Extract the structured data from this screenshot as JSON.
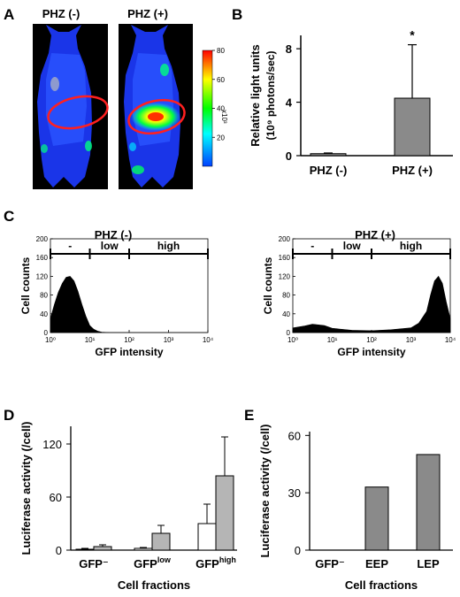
{
  "panels": {
    "A": {
      "letter": "A",
      "left_title": "PHZ (-)",
      "right_title": "PHZ (+)",
      "colorbar": {
        "ticks": [
          "80",
          "60",
          "40",
          "20"
        ],
        "unit": "x10³",
        "colors": [
          "#ff0000",
          "#ffff00",
          "#00ff00",
          "#00ffff",
          "#0040ff"
        ]
      }
    },
    "B": {
      "letter": "B"
    },
    "C": {
      "letter": "C",
      "left": {
        "title": "PHZ (-)",
        "gates": [
          "-",
          "low",
          "high"
        ]
      },
      "right": {
        "title": "PHZ (+)",
        "gates": [
          "-",
          "low",
          "high"
        ]
      }
    },
    "D": {
      "letter": "D"
    },
    "E": {
      "letter": "E"
    }
  },
  "chart_data": [
    {
      "id": "B",
      "type": "bar",
      "categories": [
        "PHZ (-)",
        "PHZ (+)"
      ],
      "values": [
        0.15,
        4.3
      ],
      "errors": [
        0.05,
        4.0
      ],
      "significance": [
        "",
        "*"
      ],
      "ylabel_lines": [
        "Relative light units",
        "(10⁹ photons/sec)"
      ],
      "yticks": [
        0,
        4,
        8
      ],
      "ylim": [
        0,
        9
      ],
      "colors": [
        "#8a8a8a"
      ]
    },
    {
      "id": "C-left",
      "type": "area",
      "xlabel": "GFP intensity",
      "ylabel": "Cell counts",
      "xscale": "log",
      "xlim": [
        1,
        10000
      ],
      "ylim": [
        0,
        200
      ],
      "yticks": [
        0,
        40,
        80,
        120,
        160,
        200
      ],
      "xticks": [
        "10⁰",
        "10¹",
        "10²",
        "10³",
        "10⁴"
      ],
      "x": [
        1.0,
        1.26,
        1.58,
        2.0,
        2.51,
        3.16,
        3.98,
        5.01,
        6.31,
        7.94,
        10.0,
        12.6,
        15.8,
        20.0,
        31.6,
        100,
        10000
      ],
      "y": [
        30,
        60,
        85,
        105,
        118,
        120,
        110,
        88,
        60,
        35,
        15,
        7,
        3,
        1,
        0,
        0,
        0
      ]
    },
    {
      "id": "C-right",
      "type": "area",
      "xlabel": "GFP intensity",
      "ylabel": "Cell counts",
      "xscale": "log",
      "xlim": [
        1,
        10000
      ],
      "ylim": [
        0,
        200
      ],
      "yticks": [
        0,
        40,
        80,
        120,
        160,
        200
      ],
      "xticks": [
        "10⁰",
        "10¹",
        "10²",
        "10³",
        "10⁴"
      ],
      "x": [
        1.0,
        2.0,
        3.16,
        6.31,
        10.0,
        31.6,
        100,
        316,
        1000,
        1585,
        2512,
        3162,
        3981,
        5012,
        6310,
        7943,
        10000
      ],
      "y": [
        10,
        14,
        18,
        15,
        9,
        5,
        4,
        6,
        10,
        20,
        45,
        80,
        110,
        120,
        105,
        65,
        30
      ]
    },
    {
      "id": "D",
      "type": "bar",
      "categories": [
        "GFP⁻",
        "GFP",
        "GFP"
      ],
      "category_superscripts": [
        "",
        "low",
        "high"
      ],
      "series": [
        {
          "values": [
            1,
            2,
            30
          ],
          "errors": [
            1,
            1,
            22
          ],
          "color": "#ffffff"
        },
        {
          "values": [
            4,
            19,
            84
          ],
          "errors": [
            2,
            9,
            44
          ],
          "color": "#b5b5b5"
        }
      ],
      "xlabel": "Cell fractions",
      "ylabel": "Luciferase activity (/cell)",
      "yticks": [
        0,
        60,
        120
      ],
      "ylim": [
        0,
        140
      ]
    },
    {
      "id": "E",
      "type": "bar",
      "categories": [
        "GFP⁻",
        "EEP",
        "LEP"
      ],
      "values": [
        0,
        33,
        50
      ],
      "colors": [
        "#8a8a8a"
      ],
      "xlabel": "Cell fractions",
      "ylabel": "Luciferase activity (/cell)",
      "yticks": [
        0,
        30,
        60
      ],
      "ylim": [
        0,
        62
      ]
    }
  ]
}
